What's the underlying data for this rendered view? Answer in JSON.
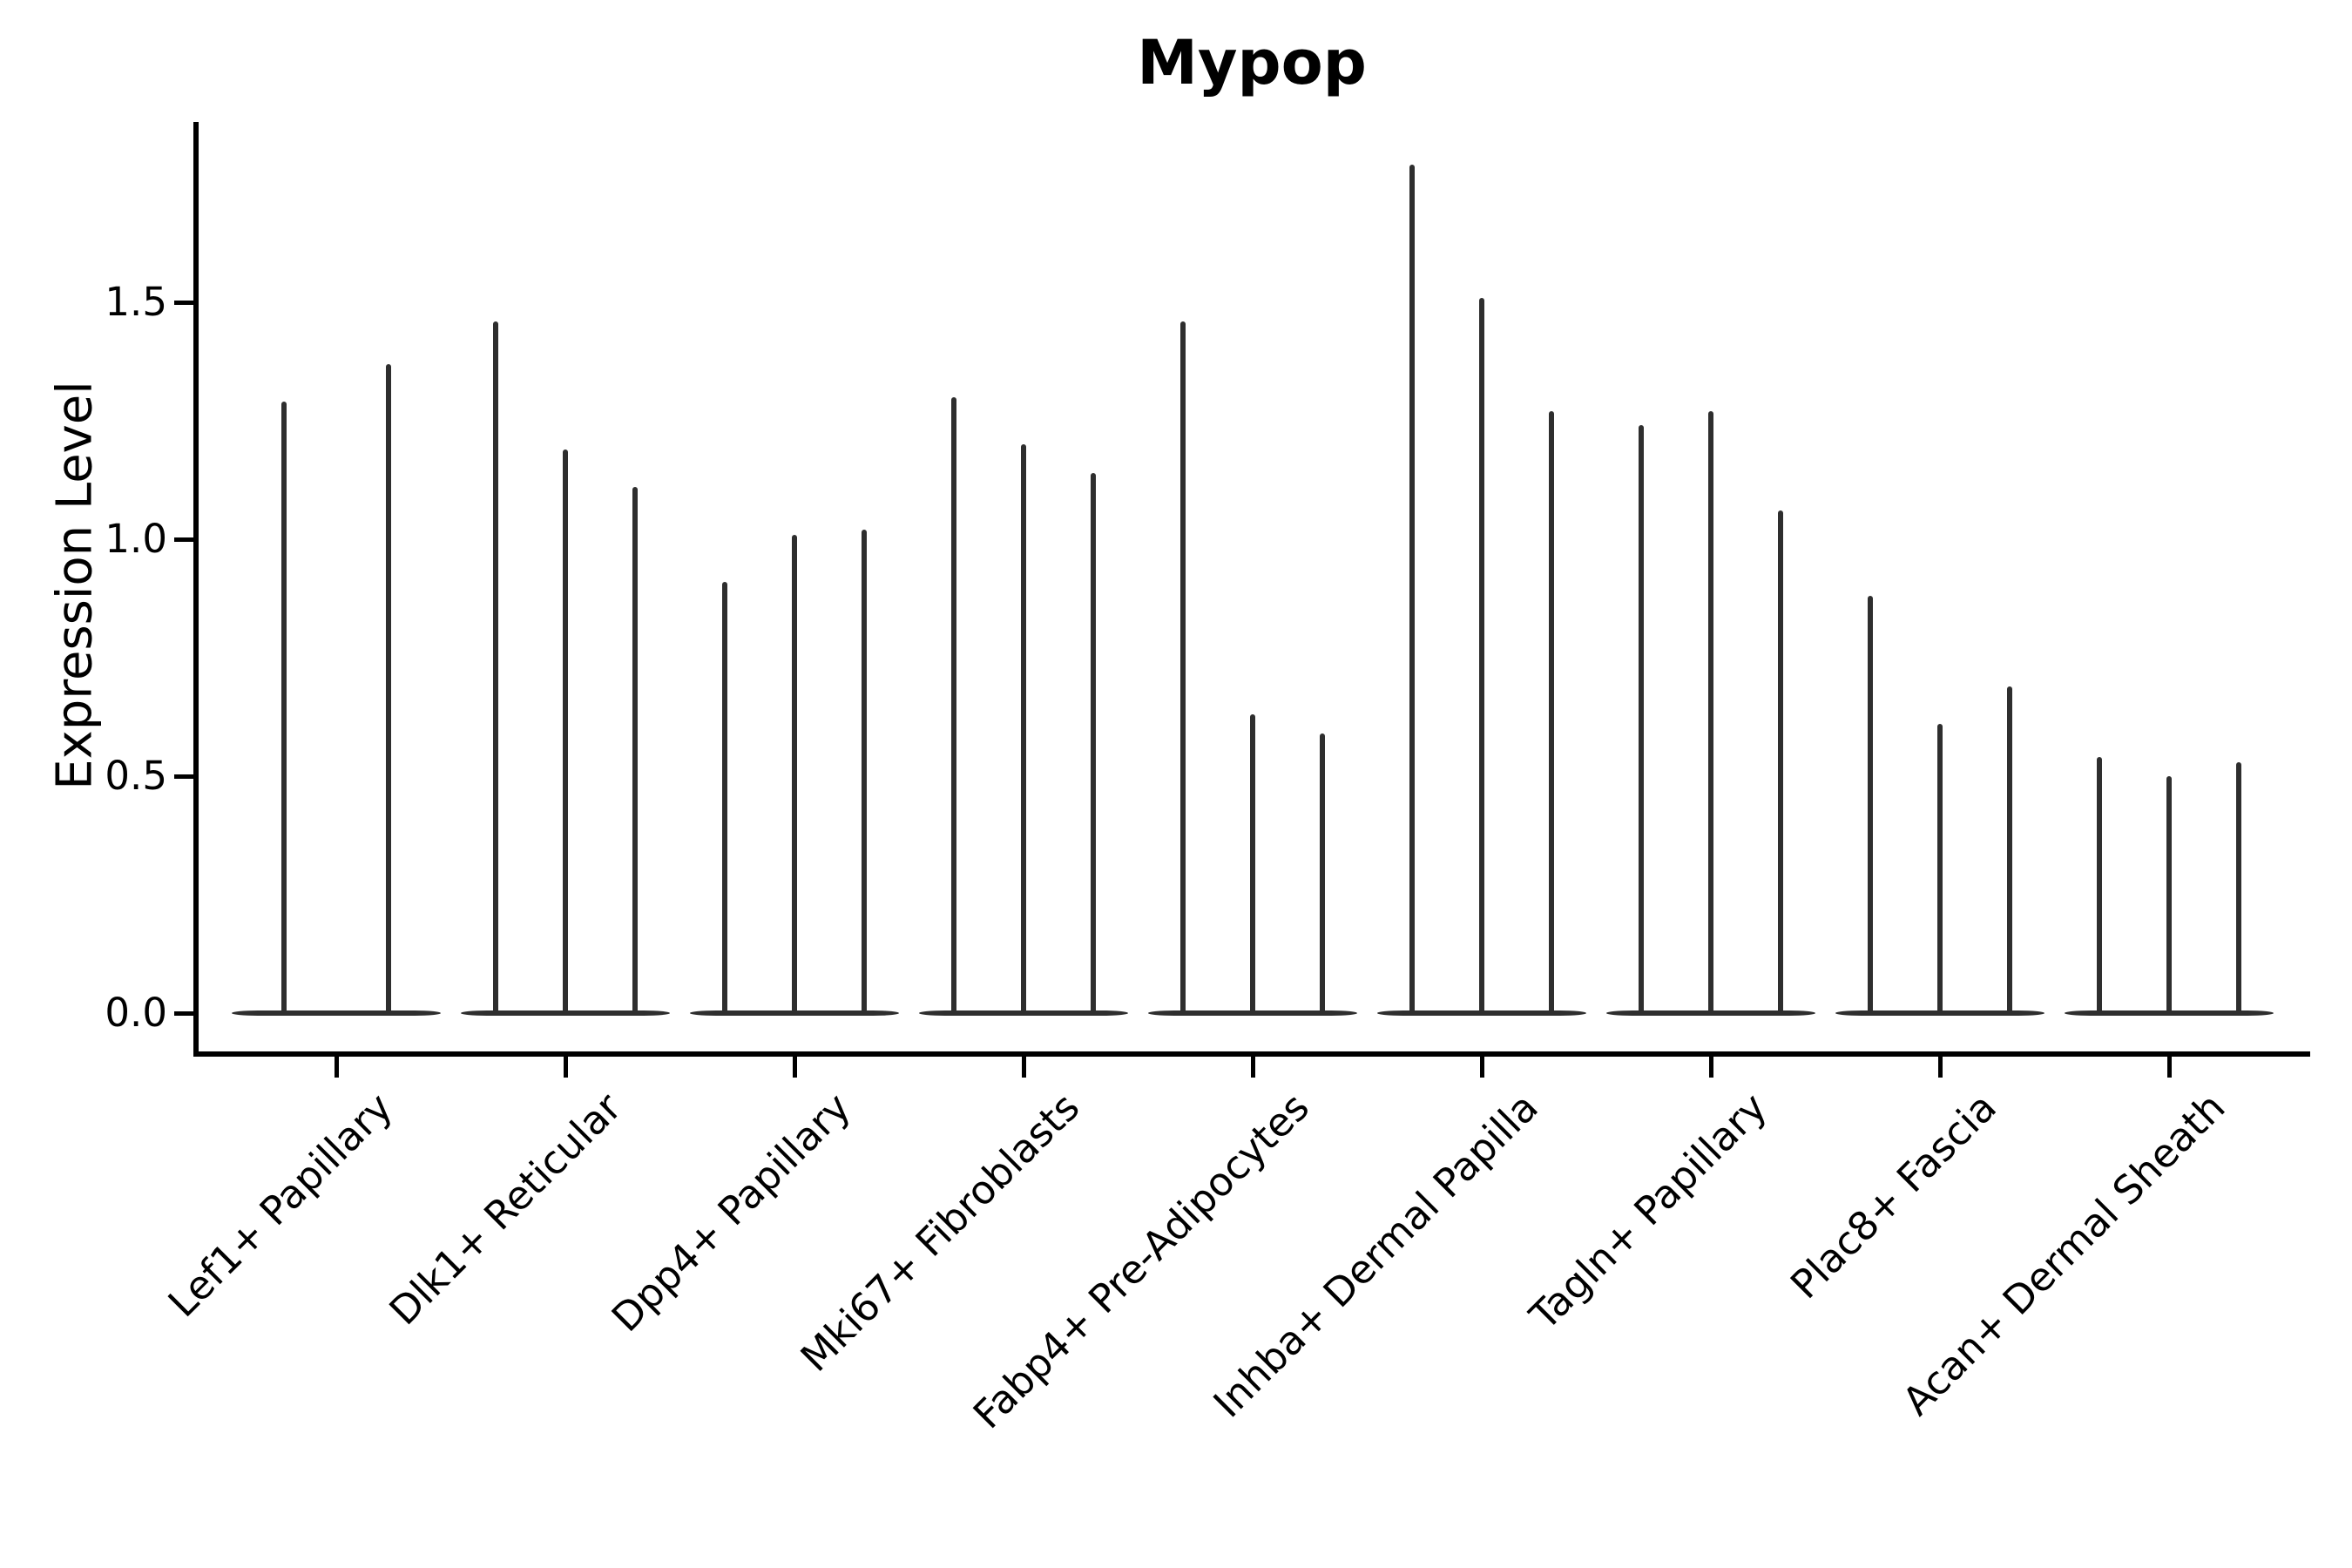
{
  "title": "Mypop",
  "ylabel": "Expression Level",
  "colors": {
    "violin": "#2e2e2e",
    "axis": "#000000",
    "background": "#ffffff"
  },
  "chart_data": {
    "type": "violin",
    "title": "Mypop",
    "xlabel": "",
    "ylabel": "Expression Level",
    "ytick_labels": [
      "0.0",
      "0.5",
      "1.0",
      "1.5"
    ],
    "ytick_values": [
      0.0,
      0.5,
      1.0,
      1.5
    ],
    "ylim": [
      -0.09,
      1.88
    ],
    "grid": false,
    "legend": "none",
    "xtick_rotation_deg": 45,
    "categories": [
      "Lef1+ Papillary",
      "Dlk1+ Reticular",
      "Dpp4+ Papillary",
      "Mki67+ Fibroblasts",
      "Fabp4+ Pre-Adipocytes",
      "Inhba+ Dermal Papilla",
      "Tagln+ Papillary",
      "Plac8+ Fascia",
      "Acan+ Dermal Sheath"
    ],
    "series": [
      {
        "category": "Lef1+ Papillary",
        "violin_max_values": [
          1.29,
          1.37
        ]
      },
      {
        "category": "Dlk1+ Reticular",
        "violin_max_values": [
          1.46,
          1.19,
          1.11
        ]
      },
      {
        "category": "Dpp4+ Papillary",
        "violin_max_values": [
          0.91,
          1.01,
          1.02
        ]
      },
      {
        "category": "Mki67+ Fibroblasts",
        "violin_max_values": [
          1.3,
          1.2,
          1.14
        ]
      },
      {
        "category": "Fabp4+ Pre-Adipocytes",
        "violin_max_values": [
          1.46,
          0.63,
          0.59
        ]
      },
      {
        "category": "Inhba+ Dermal Papilla",
        "violin_max_values": [
          1.79,
          1.51,
          1.27
        ]
      },
      {
        "category": "Tagln+ Papillary",
        "violin_max_values": [
          1.24,
          1.27,
          1.06
        ]
      },
      {
        "category": "Plac8+ Fascia",
        "violin_max_values": [
          0.88,
          0.61,
          0.69
        ]
      },
      {
        "category": "Acan+ Dermal Sheath",
        "violin_max_values": [
          0.54,
          0.5,
          0.53
        ]
      }
    ],
    "violin_min": 0.0
  }
}
